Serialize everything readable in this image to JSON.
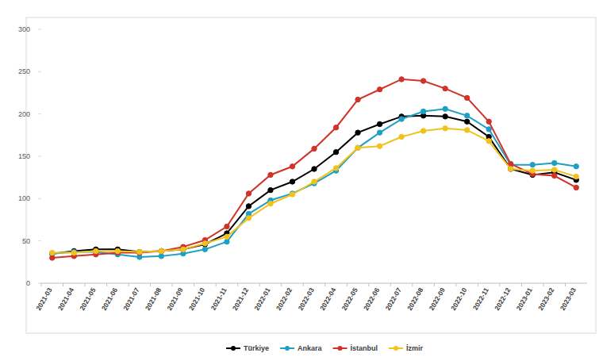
{
  "chart_data": {
    "type": "line",
    "categories": [
      "2021-03",
      "2021-04",
      "2021-05",
      "2021-06",
      "2021-07",
      "2021-08",
      "2021-09",
      "2021-10",
      "2021-11",
      "2021-12",
      "2022-01",
      "2022-02",
      "2022-03",
      "2022-04",
      "2022-05",
      "2022-06",
      "2022-07",
      "2022-08",
      "2022-09",
      "2022-10",
      "2022-11",
      "2022-12",
      "2023-01",
      "2023-02",
      "2023-03"
    ],
    "series": [
      {
        "name": "Türkiye",
        "color": "#000000",
        "marker": "circle",
        "values": [
          35,
          38,
          40,
          40,
          37,
          38,
          40,
          46,
          59,
          91,
          110,
          120,
          135,
          155,
          178,
          188,
          197,
          198,
          197,
          191,
          173,
          135,
          128,
          131,
          122
        ]
      },
      {
        "name": "Ankara",
        "color": "#1f9fc4",
        "marker": "circle",
        "values": [
          35,
          37,
          37,
          34,
          31,
          32,
          35,
          40,
          49,
          82,
          98,
          106,
          118,
          133,
          160,
          178,
          194,
          203,
          206,
          198,
          182,
          140,
          140,
          142,
          138
        ]
      },
      {
        "name": "İstanbul",
        "color": "#d0332a",
        "marker": "circle",
        "values": [
          30,
          32,
          34,
          36,
          36,
          38,
          43,
          51,
          67,
          106,
          128,
          138,
          159,
          184,
          217,
          229,
          241,
          239,
          230,
          219,
          191,
          141,
          129,
          127,
          113
        ]
      },
      {
        "name": "İzmir",
        "color": "#f2c21c",
        "marker": "circle",
        "values": [
          36,
          36,
          38,
          38,
          37,
          38,
          40,
          47,
          55,
          77,
          94,
          105,
          120,
          136,
          160,
          162,
          173,
          180,
          183,
          181,
          168,
          135,
          133,
          134,
          126
        ]
      }
    ],
    "ylim": [
      0,
      300
    ],
    "yticks": [
      0,
      50,
      100,
      150,
      200,
      250,
      300
    ],
    "grid": false,
    "legend": "bottom"
  }
}
